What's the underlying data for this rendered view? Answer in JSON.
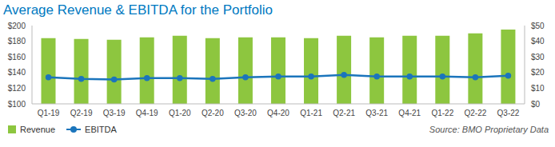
{
  "chart_data": {
    "type": "bar",
    "title": "Average Revenue & EBITDA for the Portfolio",
    "categories": [
      "Q1-19",
      "Q2-19",
      "Q3-19",
      "Q4-19",
      "Q1-20",
      "Q2-20",
      "Q3-20",
      "Q4-20",
      "Q1-21",
      "Q2-21",
      "Q3-21",
      "Q4-21",
      "Q1-22",
      "Q2-22",
      "Q3-22"
    ],
    "series": [
      {
        "name": "Revenue",
        "type": "bar",
        "color": "#8dc63f",
        "values": [
          184,
          183,
          182,
          185,
          187,
          184,
          185,
          185,
          184,
          187,
          185,
          187,
          187,
          190,
          195
        ]
      },
      {
        "name": "EBITDA",
        "type": "line",
        "color": "#1b75bc",
        "marker": "circle",
        "axis": "y2",
        "values": [
          17,
          16,
          15.5,
          16.5,
          16.5,
          16,
          17,
          17.5,
          17.5,
          18.5,
          17.5,
          17.5,
          17.5,
          17,
          18
        ]
      }
    ],
    "ylim": [
      100,
      200
    ],
    "yticks": [
      {
        "value": 100,
        "label": "$100"
      },
      {
        "value": 120,
        "label": "$120"
      },
      {
        "value": 140,
        "label": "$140"
      },
      {
        "value": 160,
        "label": "$160"
      },
      {
        "value": 180,
        "label": "$180"
      },
      {
        "value": 200,
        "label": "$200"
      }
    ],
    "y2lim": [
      0,
      50
    ],
    "y2ticks": [
      {
        "value": 0,
        "label": "$0"
      },
      {
        "value": 10,
        "label": "$10"
      },
      {
        "value": 20,
        "label": "$20"
      },
      {
        "value": 30,
        "label": "$30"
      },
      {
        "value": 40,
        "label": "$40"
      },
      {
        "value": 50,
        "label": "$50"
      }
    ],
    "grid": false,
    "legend": "bottom left",
    "annotations": [
      "Source: BMO Proprietary Data"
    ]
  }
}
